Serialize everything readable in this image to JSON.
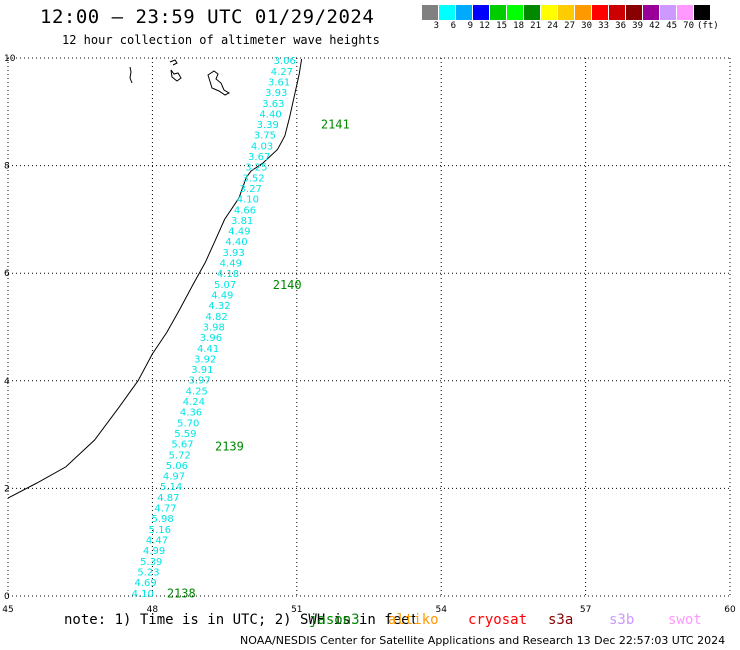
{
  "header": {
    "title": "12:00 – 23:59 UTC 01/29/2024",
    "subtitle": "12 hour collection of altimeter wave heights"
  },
  "legend_scale": {
    "colors": [
      "#808080",
      "#00ffff",
      "#00aaff",
      "#0000ff",
      "#00cc00",
      "#00ff00",
      "#008800",
      "#ffff00",
      "#ffcc00",
      "#ff9900",
      "#ff0000",
      "#cc0000",
      "#880000",
      "#990099",
      "#cc99ff",
      "#ff99ff",
      "#000000"
    ],
    "labels": [
      "3",
      "6",
      "9",
      "12",
      "15",
      "18",
      "21",
      "24",
      "27",
      "30",
      "33",
      "36",
      "39",
      "42",
      "45",
      "70"
    ],
    "unit": "(ft)"
  },
  "satellites": {
    "jason3": {
      "label": "jason3",
      "color": "#008800"
    },
    "altika": {
      "label": "altiko",
      "color": "#ff9900"
    },
    "cryosat": {
      "label": "cryosat",
      "color": "#ff0000"
    },
    "s3a": {
      "label": "s3a",
      "color": "#880000"
    },
    "s3b": {
      "label": "s3b",
      "color": "#cc99ff"
    },
    "swot": {
      "label": "swot",
      "color": "#ff99ff"
    }
  },
  "note": "note: 1) Time is in UTC; 2) SWH is in feet",
  "credit": "NOAA/NESDIS Center for Satellite Applications and Research   13 Dec 22:57:03 UTC 2024",
  "chart_data": {
    "type": "scatter",
    "x_ticks": [
      "45",
      "48",
      "51",
      "54",
      "57",
      "60"
    ],
    "y_ticks": [
      "0",
      "2",
      "4",
      "6",
      "8",
      "10"
    ],
    "xlim": [
      45,
      60
    ],
    "ylim": [
      0,
      10
    ],
    "grid": true,
    "point_color": "#00e5e5",
    "pass_label_color": "#008800",
    "wave_heights_ft": [
      "4.10",
      "4.69",
      "5.23",
      "5.39",
      "4.99",
      "4.47",
      "5.16",
      "5.98",
      "4.77",
      "4.87",
      "5.14",
      "4.97",
      "5.06",
      "5.72",
      "5.67",
      "5.59",
      "5.70",
      "4.36",
      "4.24",
      "4.25",
      "3.97",
      "3.91",
      "3.92",
      "4.41",
      "3.96",
      "3.98",
      "4.82",
      "4.32",
      "4.49",
      "5.07",
      "4.18",
      "4.49",
      "3.93",
      "4.40",
      "4.49",
      "3.81",
      "4.66",
      "4.10",
      "3.27",
      "3.52",
      "3.25",
      "3.67",
      "4.03",
      "3.75",
      "3.39",
      "4.40",
      "3.63",
      "3.93",
      "3.61",
      "4.27",
      "3.06"
    ],
    "track_start": {
      "lon": 47.8,
      "lat": 0.06
    },
    "track_end": {
      "lon": 50.75,
      "lat": 9.96
    },
    "pass_labels": [
      {
        "label": "2138",
        "lon": 48.3,
        "lat": 0.05
      },
      {
        "label": "2139",
        "lon": 49.3,
        "lat": 2.78
      },
      {
        "label": "2140",
        "lon": 50.5,
        "lat": 5.78
      },
      {
        "label": "2141",
        "lon": 51.5,
        "lat": 8.76
      }
    ],
    "coastline": [
      [
        45,
        1.82
      ],
      [
        45.6,
        2.1
      ],
      [
        46.2,
        2.4
      ],
      [
        46.8,
        2.9
      ],
      [
        47.3,
        3.5
      ],
      [
        47.7,
        4.0
      ],
      [
        48.0,
        4.5
      ],
      [
        48.3,
        4.9
      ],
      [
        48.55,
        5.3
      ],
      [
        48.85,
        5.8
      ],
      [
        49.1,
        6.2
      ],
      [
        49.3,
        6.6
      ],
      [
        49.5,
        7.0
      ],
      [
        49.8,
        7.4
      ],
      [
        49.95,
        7.78
      ],
      [
        50.05,
        7.9
      ],
      [
        50.3,
        8.05
      ],
      [
        50.6,
        8.3
      ],
      [
        50.75,
        8.55
      ],
      [
        50.85,
        8.9
      ],
      [
        50.95,
        9.3
      ],
      [
        51.05,
        9.7
      ],
      [
        51.1,
        9.98
      ]
    ]
  }
}
